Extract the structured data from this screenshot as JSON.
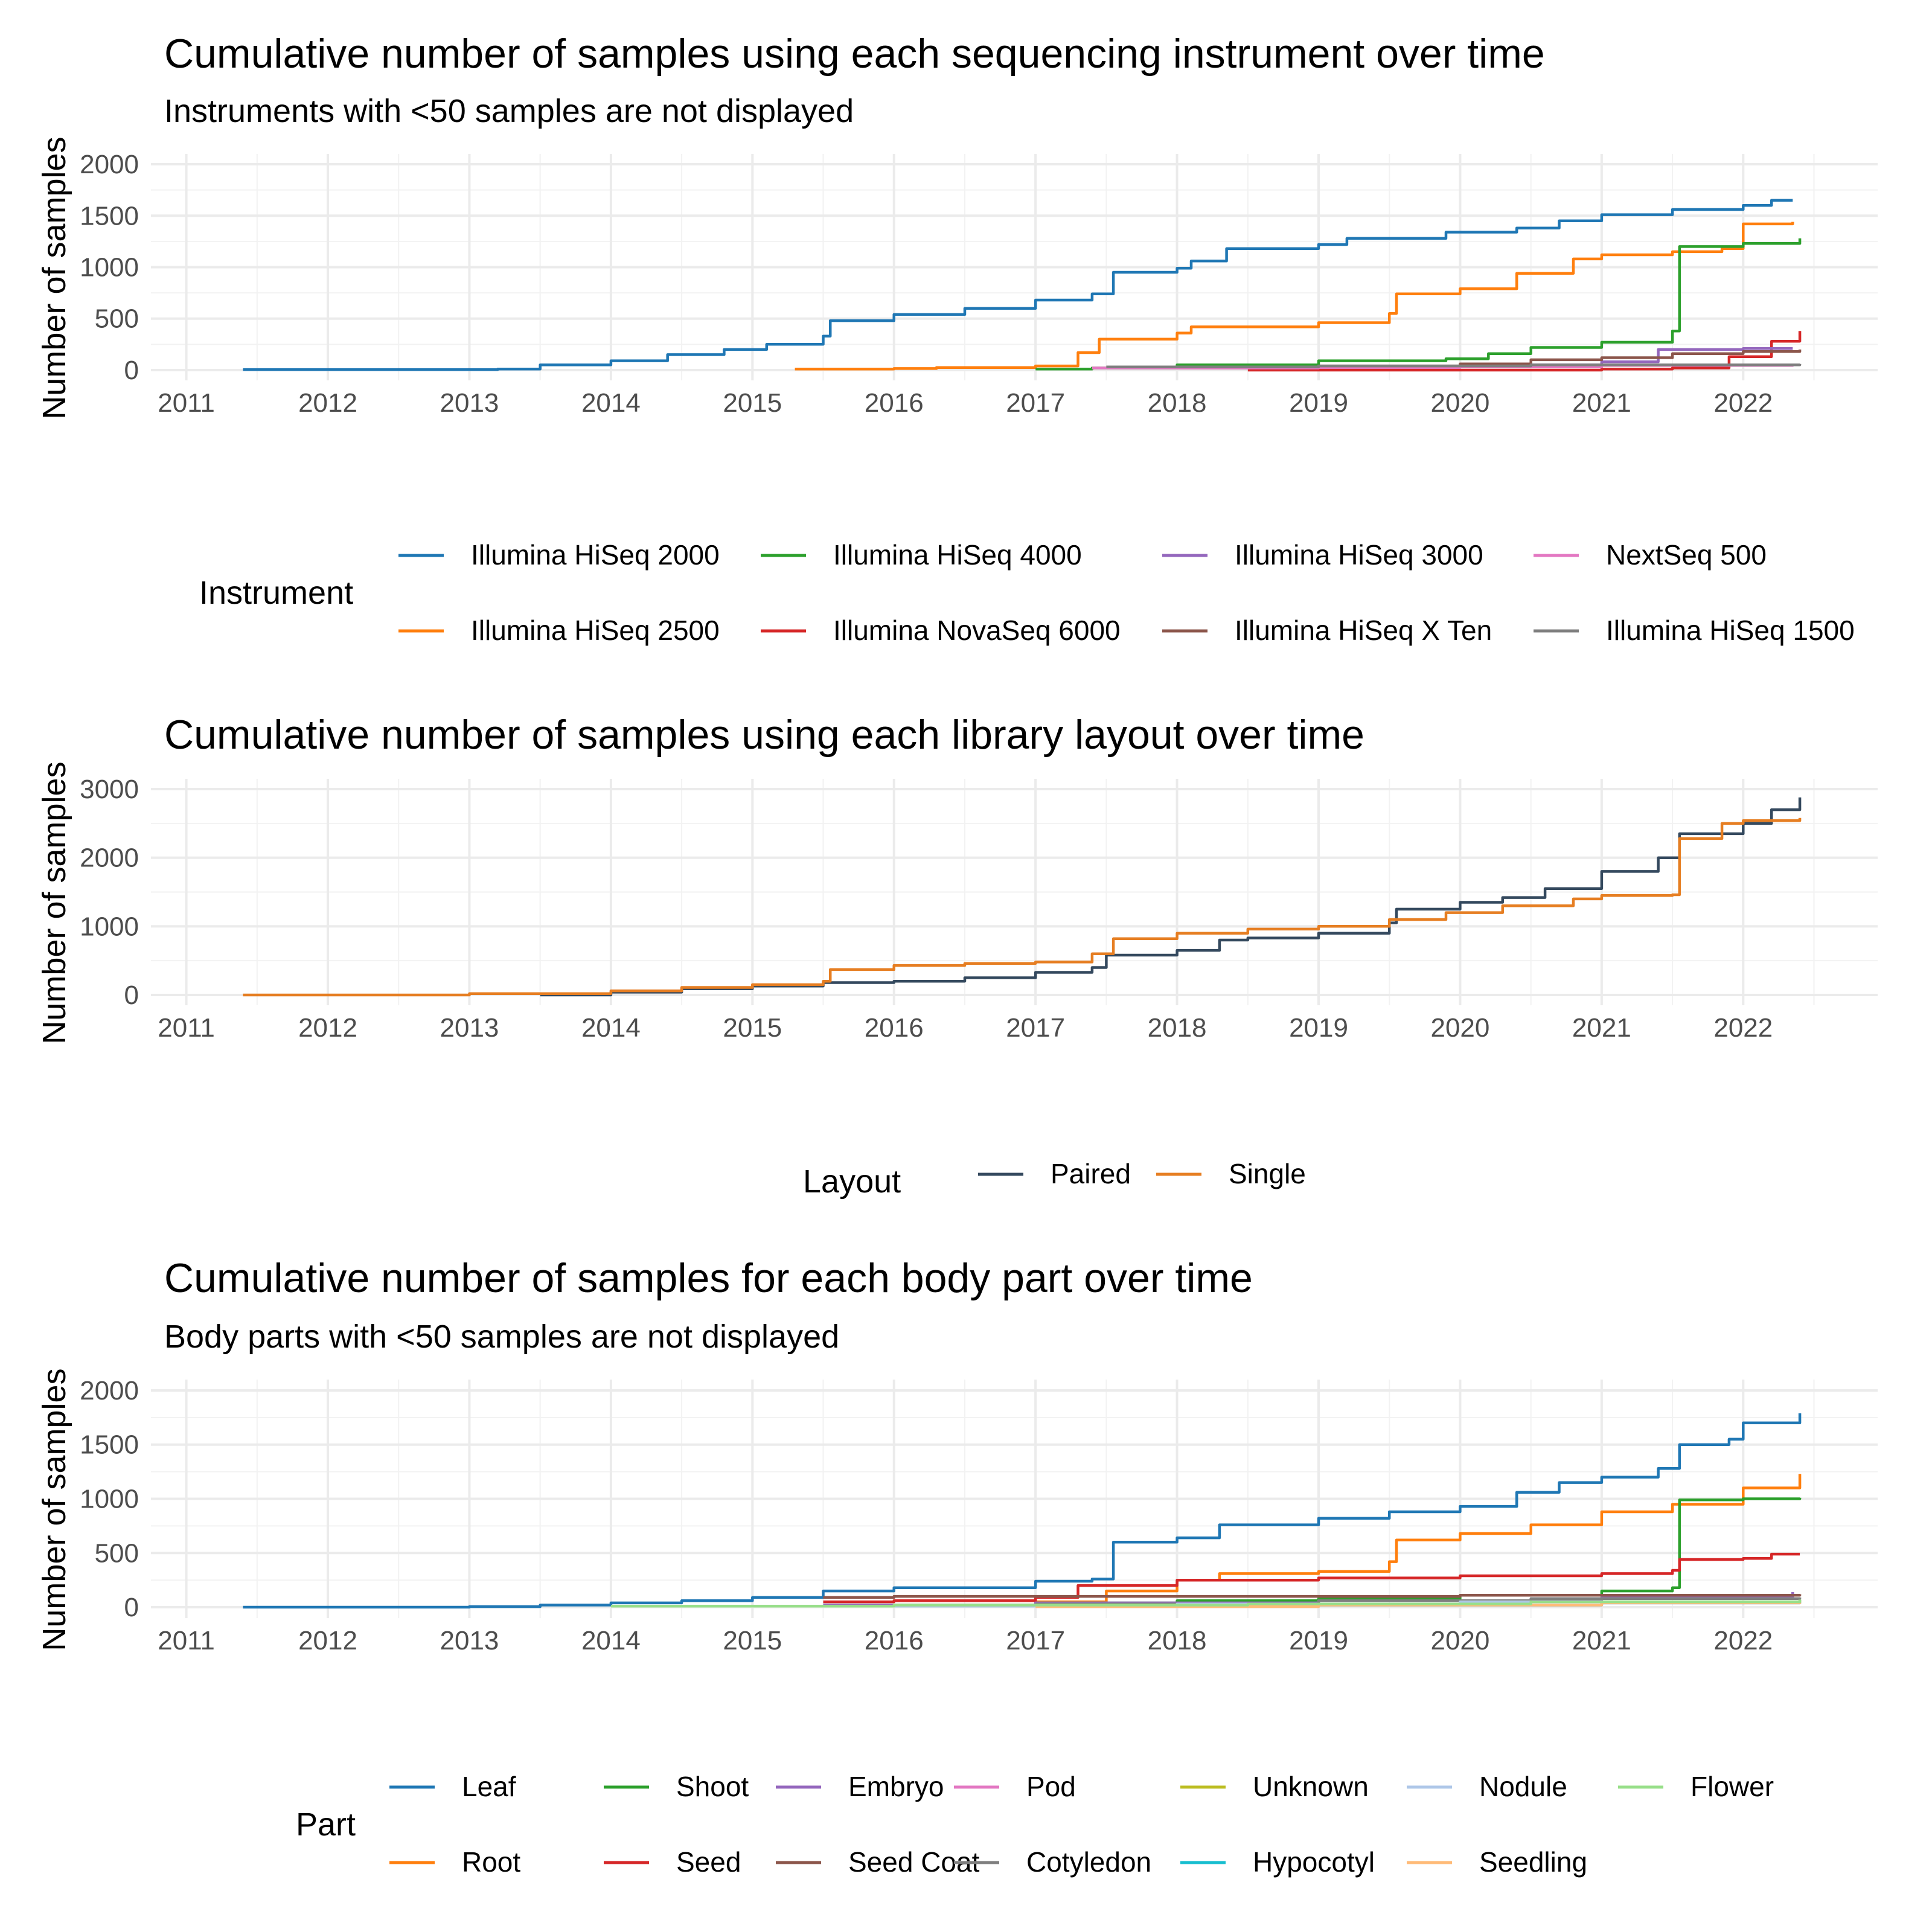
{
  "chart_data": [
    {
      "type": "line",
      "title": "Cumulative number of samples using each sequencing instrument over time",
      "subtitle": "Instruments with <50 samples are not displayed",
      "xlabel": "",
      "ylabel": "Number of samples",
      "xlim": [
        2011,
        2022.6
      ],
      "ylim": [
        0,
        2000
      ],
      "xticks": [
        "2011",
        "2012",
        "2013",
        "2014",
        "2015",
        "2016",
        "2017",
        "2018",
        "2019",
        "2020",
        "2021",
        "2022"
      ],
      "yticks": [
        "0",
        "500",
        "1000",
        "1500",
        "2000"
      ],
      "legend_title": "Instrument",
      "legend_position": "bottom",
      "grid": true,
      "series": [
        {
          "name": "Illumina HiSeq 2000",
          "color": "#1f77b4",
          "x": [
            2011.4,
            2012.5,
            2013.2,
            2013.5,
            2014.0,
            2014.4,
            2014.8,
            2015.1,
            2015.5,
            2015.55,
            2016.0,
            2016.5,
            2017.0,
            2017.4,
            2017.55,
            2018.0,
            2018.1,
            2018.35,
            2019.0,
            2019.2,
            2019.9,
            2020.4,
            2020.7,
            2021.0,
            2021.5,
            2022.0,
            2022.2,
            2022.35
          ],
          "y": [
            5,
            5,
            10,
            50,
            90,
            150,
            200,
            250,
            330,
            480,
            540,
            600,
            680,
            740,
            950,
            990,
            1060,
            1180,
            1220,
            1280,
            1340,
            1380,
            1450,
            1510,
            1560,
            1600,
            1650,
            1650
          ]
        },
        {
          "name": "Illumina HiSeq 2500",
          "color": "#ff7f0e",
          "x": [
            2015.3,
            2016.0,
            2016.3,
            2017.0,
            2017.3,
            2017.45,
            2018.0,
            2018.1,
            2019.0,
            2019.5,
            2019.55,
            2020.0,
            2020.4,
            2020.8,
            2021.0,
            2021.5,
            2021.85,
            2022.0,
            2022.35
          ],
          "y": [
            10,
            15,
            25,
            40,
            170,
            300,
            360,
            420,
            460,
            550,
            740,
            790,
            940,
            1080,
            1120,
            1150,
            1180,
            1420,
            1440
          ]
        },
        {
          "name": "Illumina HiSeq 4000",
          "color": "#2ca02c",
          "x": [
            2017.0,
            2017.4,
            2018.0,
            2019.0,
            2019.9,
            2020.2,
            2020.5,
            2021.0,
            2021.5,
            2021.55,
            2022.0,
            2022.4
          ],
          "y": [
            10,
            20,
            50,
            90,
            110,
            160,
            220,
            270,
            380,
            1200,
            1230,
            1280
          ]
        },
        {
          "name": "Illumina NovaSeq 6000",
          "color": "#d62728",
          "x": [
            2018.5,
            2021.0,
            2021.5,
            2021.9,
            2022.2,
            2022.4
          ],
          "y": [
            0,
            10,
            20,
            130,
            280,
            380
          ]
        },
        {
          "name": "Illumina HiSeq 3000",
          "color": "#9467bd",
          "x": [
            2019.0,
            2020.0,
            2021.0,
            2021.4,
            2022.0,
            2022.35
          ],
          "y": [
            30,
            50,
            80,
            200,
            210,
            210
          ]
        },
        {
          "name": "Illumina HiSeq X Ten",
          "color": "#8c564b",
          "x": [
            2018.0,
            2019.0,
            2020.0,
            2020.5,
            2021.0,
            2021.5,
            2022.0,
            2022.4
          ],
          "y": [
            20,
            40,
            60,
            100,
            120,
            160,
            180,
            200
          ]
        },
        {
          "name": "NextSeq 500",
          "color": "#e377c2",
          "x": [
            2017.4,
            2019.0,
            2020.0,
            2021.0,
            2022.35
          ],
          "y": [
            20,
            25,
            30,
            45,
            55
          ]
        },
        {
          "name": "Illumina HiSeq 1500",
          "color": "#7f7f7f",
          "x": [
            2017.5,
            2019.0,
            2020.5,
            2022.4
          ],
          "y": [
            30,
            40,
            50,
            60
          ]
        }
      ]
    },
    {
      "type": "line",
      "title": "Cumulative number of samples using each library layout over time",
      "xlabel": "",
      "ylabel": "Number of samples",
      "xlim": [
        2011,
        2022.6
      ],
      "ylim": [
        0,
        3000
      ],
      "xticks": [
        "2011",
        "2012",
        "2013",
        "2014",
        "2015",
        "2016",
        "2017",
        "2018",
        "2019",
        "2020",
        "2021",
        "2022"
      ],
      "yticks": [
        "0",
        "1000",
        "2000",
        "3000"
      ],
      "legend_title": "Layout",
      "legend_position": "bottom",
      "grid": true,
      "series": [
        {
          "name": "Paired",
          "color": "#34495e",
          "x": [
            2013.5,
            2014.0,
            2014.5,
            2015.0,
            2015.5,
            2016.0,
            2016.5,
            2017.0,
            2017.4,
            2017.5,
            2018.0,
            2018.3,
            2018.5,
            2019.0,
            2019.5,
            2019.55,
            2020.0,
            2020.3,
            2020.6,
            2021.0,
            2021.4,
            2021.55,
            2022.0,
            2022.2,
            2022.4
          ],
          "y": [
            0,
            40,
            90,
            130,
            180,
            200,
            250,
            330,
            400,
            580,
            650,
            800,
            830,
            900,
            1050,
            1250,
            1350,
            1420,
            1550,
            1800,
            2000,
            2350,
            2500,
            2700,
            2880
          ]
        },
        {
          "name": "Single",
          "color": "#e67e22",
          "x": [
            2011.4,
            2013.0,
            2014.0,
            2014.5,
            2015.0,
            2015.5,
            2015.55,
            2016.0,
            2016.5,
            2017.0,
            2017.4,
            2017.55,
            2018.0,
            2018.5,
            2019.0,
            2019.5,
            2019.9,
            2020.3,
            2020.8,
            2021.0,
            2021.5,
            2021.55,
            2021.85,
            2022.0,
            2022.4
          ],
          "y": [
            0,
            20,
            60,
            110,
            150,
            200,
            370,
            430,
            460,
            480,
            600,
            820,
            900,
            960,
            1000,
            1100,
            1200,
            1300,
            1400,
            1450,
            1460,
            2280,
            2500,
            2540,
            2580
          ]
        }
      ]
    },
    {
      "type": "line",
      "title": "Cumulative number of samples for each body part over time",
      "subtitle": "Body parts with <50 samples are not displayed",
      "xlabel": "",
      "ylabel": "Number of samples",
      "xlim": [
        2011,
        2022.6
      ],
      "ylim": [
        0,
        2000
      ],
      "xticks": [
        "2011",
        "2012",
        "2013",
        "2014",
        "2015",
        "2016",
        "2017",
        "2018",
        "2019",
        "2020",
        "2021",
        "2022"
      ],
      "yticks": [
        "0",
        "500",
        "1000",
        "1500",
        "2000"
      ],
      "legend_title": "Part",
      "legend_position": "bottom",
      "grid": true,
      "series": [
        {
          "name": "Leaf",
          "color": "#1f77b4",
          "x": [
            2011.4,
            2013.0,
            2013.5,
            2014.0,
            2014.5,
            2015.0,
            2015.5,
            2016.0,
            2017.0,
            2017.4,
            2017.55,
            2018.0,
            2018.3,
            2019.0,
            2019.5,
            2020.0,
            2020.4,
            2020.7,
            2021.0,
            2021.4,
            2021.55,
            2021.9,
            2022.0,
            2022.4
          ],
          "y": [
            0,
            5,
            20,
            40,
            60,
            90,
            150,
            180,
            240,
            260,
            600,
            640,
            760,
            820,
            880,
            930,
            1060,
            1150,
            1200,
            1280,
            1500,
            1550,
            1700,
            1790
          ]
        },
        {
          "name": "Root",
          "color": "#ff7f0e",
          "x": [
            2017.0,
            2017.5,
            2018.0,
            2018.3,
            2019.0,
            2019.5,
            2019.55,
            2020.0,
            2020.5,
            2021.0,
            2021.5,
            2022.0,
            2022.4
          ],
          "y": [
            50,
            150,
            250,
            310,
            330,
            420,
            620,
            680,
            760,
            880,
            950,
            1100,
            1230
          ]
        },
        {
          "name": "Shoot",
          "color": "#2ca02c",
          "x": [
            2015.5,
            2017.0,
            2018.0,
            2019.0,
            2020.0,
            2021.0,
            2021.5,
            2021.55,
            2022.0,
            2022.4
          ],
          "y": [
            20,
            40,
            60,
            80,
            110,
            150,
            180,
            990,
            1000,
            1010
          ]
        },
        {
          "name": "Seed",
          "color": "#d62728",
          "x": [
            2015.5,
            2016.0,
            2017.0,
            2017.3,
            2018.0,
            2019.0,
            2020.0,
            2021.0,
            2021.5,
            2021.55,
            2022.0,
            2022.2,
            2022.4
          ],
          "y": [
            50,
            60,
            90,
            200,
            250,
            270,
            290,
            310,
            340,
            440,
            450,
            490,
            490
          ]
        },
        {
          "name": "Embryo",
          "color": "#9467bd",
          "x": [
            2015.5,
            2017.0,
            2019.0,
            2021.0,
            2022.35
          ],
          "y": [
            20,
            40,
            60,
            90,
            140
          ]
        },
        {
          "name": "Seed Coat",
          "color": "#8c564b",
          "x": [
            2015.5,
            2016.0,
            2018.0,
            2020.0,
            2022.4
          ],
          "y": [
            90,
            100,
            100,
            110,
            120
          ]
        },
        {
          "name": "Pod",
          "color": "#e377c2",
          "x": [
            2016.0,
            2019.0,
            2021.0,
            2022.4
          ],
          "y": [
            10,
            20,
            40,
            60
          ]
        },
        {
          "name": "Cotyledon",
          "color": "#7f7f7f",
          "x": [
            2017.0,
            2019.0,
            2020.5,
            2022.4
          ],
          "y": [
            30,
            60,
            80,
            90
          ]
        },
        {
          "name": "Unknown",
          "color": "#bcbd22",
          "x": [
            2016.5,
            2018.0,
            2020.0,
            2022.4
          ],
          "y": [
            10,
            30,
            50,
            70
          ]
        },
        {
          "name": "Hypocotyl",
          "color": "#17becf",
          "x": [
            2017.5,
            2019.0,
            2021.0,
            2022.4
          ],
          "y": [
            10,
            20,
            40,
            60
          ]
        },
        {
          "name": "Nodule",
          "color": "#aec7e8",
          "x": [
            2016.0,
            2018.0,
            2020.0,
            2022.4
          ],
          "y": [
            10,
            30,
            50,
            60
          ]
        },
        {
          "name": "Seedling",
          "color": "#ffbb78",
          "x": [
            2017.0,
            2019.0,
            2021.0,
            2022.4
          ],
          "y": [
            5,
            20,
            40,
            55
          ]
        },
        {
          "name": "Flower",
          "color": "#98df8a",
          "x": [
            2014.0,
            2016.0,
            2018.5,
            2020.5,
            2022.4
          ],
          "y": [
            10,
            20,
            30,
            50,
            70
          ]
        }
      ]
    }
  ]
}
